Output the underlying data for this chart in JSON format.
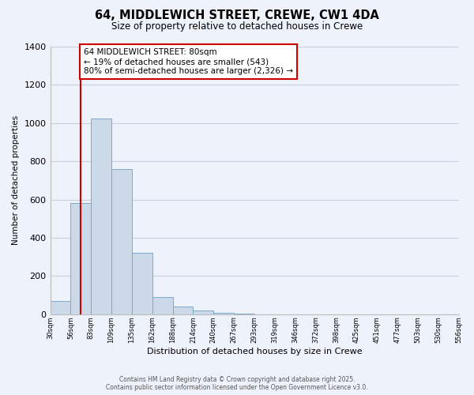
{
  "title": "64, MIDDLEWICH STREET, CREWE, CW1 4DA",
  "subtitle": "Size of property relative to detached houses in Crewe",
  "xlabel": "Distribution of detached houses by size in Crewe",
  "ylabel": "Number of detached properties",
  "bar_color": "#ccd9e8",
  "bar_edge_color": "#7aaac8",
  "background_color": "#eef2fa",
  "plot_bg_color": "#eef2fa",
  "grid_color": "#c8d0e0",
  "bin_labels": [
    "30sqm",
    "56sqm",
    "83sqm",
    "109sqm",
    "135sqm",
    "162sqm",
    "188sqm",
    "214sqm",
    "240sqm",
    "267sqm",
    "293sqm",
    "319sqm",
    "346sqm",
    "372sqm",
    "398sqm",
    "425sqm",
    "451sqm",
    "477sqm",
    "503sqm",
    "530sqm",
    "556sqm"
  ],
  "bar_values": [
    70,
    580,
    1025,
    760,
    320,
    90,
    40,
    20,
    8,
    2,
    0,
    0,
    0,
    0,
    0,
    0,
    0,
    0,
    0,
    0
  ],
  "ylim": [
    0,
    1400
  ],
  "yticks": [
    0,
    200,
    400,
    600,
    800,
    1000,
    1200,
    1400
  ],
  "vline_position": 1.5,
  "vline_color": "#cc0000",
  "annotation_text": "64 MIDDLEWICH STREET: 80sqm\n← 19% of detached houses are smaller (543)\n80% of semi-detached houses are larger (2,326) →",
  "annotation_box_color": "#ffffff",
  "annotation_box_edge": "#cc0000",
  "footer_line1": "Contains HM Land Registry data © Crown copyright and database right 2025.",
  "footer_line2": "Contains public sector information licensed under the Open Government Licence v3.0."
}
